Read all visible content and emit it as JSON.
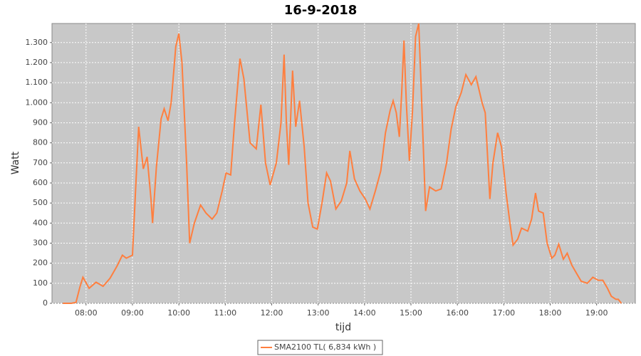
{
  "chart_data": {
    "type": "line",
    "title": "16-9-2018",
    "x_label": "tijd",
    "y_label": "Watt",
    "x": [
      "07:30",
      "07:41",
      "07:47",
      "07:52",
      "07:56",
      "07:59",
      "08:04",
      "08:13",
      "08:22",
      "08:31",
      "08:40",
      "08:47",
      "08:52",
      "09:00",
      "09:04",
      "09:08",
      "09:14",
      "09:19",
      "09:24",
      "09:26",
      "09:31",
      "09:37",
      "09:41",
      "09:46",
      "09:50",
      "09:56",
      "10:00",
      "10:04",
      "10:10",
      "10:14",
      "10:20",
      "10:28",
      "10:35",
      "10:43",
      "10:49",
      "10:56",
      "11:01",
      "11:07",
      "11:12",
      "11:19",
      "11:24",
      "11:32",
      "11:40",
      "11:46",
      "11:52",
      "11:58",
      "12:06",
      "12:12",
      "12:16",
      "12:19",
      "12:22",
      "12:27",
      "12:31",
      "12:36",
      "12:42",
      "12:47",
      "12:53",
      "12:59",
      "13:05",
      "13:11",
      "13:16",
      "13:23",
      "13:30",
      "13:37",
      "13:41",
      "13:47",
      "13:54",
      "14:01",
      "14:07",
      "14:14",
      "14:21",
      "14:27",
      "14:33",
      "14:37",
      "14:41",
      "14:45",
      "14:48",
      "14:51",
      "14:54",
      "14:58",
      "15:02",
      "15:06",
      "15:10",
      "15:13",
      "15:19",
      "15:24",
      "15:32",
      "15:39",
      "15:46",
      "15:52",
      "15:58",
      "16:05",
      "16:11",
      "16:18",
      "16:24",
      "16:32",
      "16:36",
      "16:42",
      "16:46",
      "16:52",
      "16:57",
      "17:03",
      "17:08",
      "17:12",
      "17:18",
      "17:23",
      "17:31",
      "17:36",
      "17:41",
      "17:45",
      "17:51",
      "17:56",
      "18:02",
      "18:06",
      "18:11",
      "18:17",
      "18:22",
      "18:28",
      "18:34",
      "18:40",
      "18:48",
      "18:55",
      "19:02",
      "19:08",
      "19:14",
      "19:19",
      "19:25",
      "19:28",
      "19:32"
    ],
    "series": [
      {
        "name": "SMA2100 TL( 6,834 kWh )",
        "color": "#ff7f3f",
        "values": [
          0,
          0,
          5,
          80,
          130,
          110,
          75,
          105,
          85,
          125,
          185,
          240,
          225,
          240,
          560,
          880,
          670,
          730,
          520,
          400,
          680,
          920,
          970,
          910,
          1000,
          1280,
          1345,
          1200,
          700,
          300,
          400,
          490,
          450,
          420,
          450,
          560,
          650,
          640,
          900,
          1220,
          1120,
          800,
          770,
          990,
          700,
          590,
          700,
          900,
          1240,
          900,
          690,
          1160,
          880,
          1010,
          780,
          500,
          380,
          370,
          500,
          650,
          610,
          470,
          510,
          600,
          760,
          620,
          560,
          520,
          470,
          560,
          660,
          850,
          960,
          1010,
          950,
          830,
          1050,
          1310,
          1000,
          710,
          960,
          1330,
          1395,
          1100,
          460,
          580,
          560,
          570,
          700,
          870,
          980,
          1050,
          1140,
          1090,
          1130,
          1000,
          950,
          520,
          700,
          850,
          780,
          550,
          400,
          290,
          320,
          375,
          360,
          420,
          550,
          460,
          450,
          300,
          225,
          240,
          295,
          220,
          250,
          190,
          150,
          110,
          100,
          130,
          115,
          115,
          75,
          35,
          20,
          20,
          0
        ]
      }
    ],
    "xlim": [
      "07:16",
      "19:50"
    ],
    "xticks": [
      "08:00",
      "09:00",
      "10:00",
      "11:00",
      "12:00",
      "13:00",
      "14:00",
      "15:00",
      "16:00",
      "17:00",
      "18:00",
      "19:00"
    ],
    "ylim": [
      0,
      1395
    ],
    "yticks": [
      0,
      100,
      200,
      300,
      400,
      500,
      600,
      700,
      800,
      900,
      {
        "value": 1000,
        "label": "1.000"
      },
      {
        "value": 1100,
        "label": "1.100"
      },
      {
        "value": 1200,
        "label": "1.200"
      },
      {
        "value": 1300,
        "label": "1.300"
      }
    ],
    "grid": true
  }
}
